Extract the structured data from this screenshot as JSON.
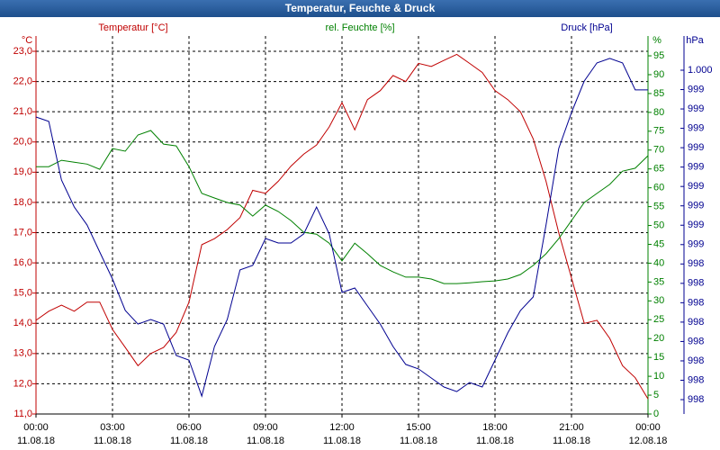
{
  "chart_data": {
    "type": "line",
    "title": "Temperatur, Feuchte & Druck",
    "x": [
      0,
      0.5,
      1,
      1.5,
      2,
      2.5,
      3,
      3.5,
      4,
      4.5,
      5,
      5.5,
      6,
      6.5,
      7,
      7.5,
      8,
      8.5,
      9,
      9.5,
      10,
      10.5,
      11,
      11.5,
      12,
      12.5,
      13,
      13.5,
      14,
      14.5,
      15,
      15.5,
      16,
      16.5,
      17,
      17.5,
      18,
      18.5,
      19,
      19.5,
      20,
      20.5,
      21,
      21.5,
      22,
      22.5,
      23,
      23.5,
      24
    ],
    "xlim": [
      0,
      24
    ],
    "xticks": [
      {
        "value": 0,
        "label": "00:00",
        "sublabel": "11.08.18"
      },
      {
        "value": 3,
        "label": "03:00",
        "sublabel": "11.08.18"
      },
      {
        "value": 6,
        "label": "06:00",
        "sublabel": "11.08.18"
      },
      {
        "value": 9,
        "label": "09:00",
        "sublabel": "11.08.18"
      },
      {
        "value": 12,
        "label": "12:00",
        "sublabel": "11.08.18"
      },
      {
        "value": 15,
        "label": "15:00",
        "sublabel": "11.08.18"
      },
      {
        "value": 18,
        "label": "18:00",
        "sublabel": "11.08.18"
      },
      {
        "value": 21,
        "label": "21:00",
        "sublabel": "11.08.18"
      },
      {
        "value": 24,
        "label": "00:00",
        "sublabel": "12.08.18"
      }
    ],
    "ylabel": "°C",
    "ylim": [
      11,
      23
    ],
    "yticks": [
      {
        "value": 11,
        "label": "11,0"
      },
      {
        "value": 12,
        "label": "12,0"
      },
      {
        "value": 13,
        "label": "13,0"
      },
      {
        "value": 14,
        "label": "14,0"
      },
      {
        "value": 15,
        "label": "15,0"
      },
      {
        "value": 16,
        "label": "16,0"
      },
      {
        "value": 17,
        "label": "17,0"
      },
      {
        "value": 18,
        "label": "18,0"
      },
      {
        "value": 19,
        "label": "19,0"
      },
      {
        "value": 20,
        "label": "20,0"
      },
      {
        "value": 21,
        "label": "21,0"
      },
      {
        "value": 22,
        "label": "22,0"
      },
      {
        "value": 23,
        "label": "23,0"
      }
    ],
    "y2label": "%",
    "y2lim": [
      0,
      96.2
    ],
    "y2ticks": [
      0,
      5,
      10,
      15,
      20,
      25,
      30,
      35,
      40,
      45,
      50,
      55,
      60,
      65,
      70,
      75,
      80,
      85,
      90,
      95
    ],
    "y3label": "hPa",
    "y3lim": [
      997.461,
      999.707
    ],
    "y3ticks": [
      {
        "value": 997.55,
        "label": "998"
      },
      {
        "value": 997.67,
        "label": "998"
      },
      {
        "value": 997.79,
        "label": "998"
      },
      {
        "value": 997.91,
        "label": "998"
      },
      {
        "value": 998.03,
        "label": "998"
      },
      {
        "value": 998.15,
        "label": "998"
      },
      {
        "value": 998.27,
        "label": "998"
      },
      {
        "value": 998.39,
        "label": "998"
      },
      {
        "value": 998.51,
        "label": "999"
      },
      {
        "value": 998.63,
        "label": "999"
      },
      {
        "value": 998.75,
        "label": "999"
      },
      {
        "value": 998.87,
        "label": "999"
      },
      {
        "value": 998.99,
        "label": "999"
      },
      {
        "value": 999.11,
        "label": "999"
      },
      {
        "value": 999.23,
        "label": "999"
      },
      {
        "value": 999.35,
        "label": "999"
      },
      {
        "value": 999.47,
        "label": "999"
      },
      {
        "value": 999.59,
        "label": "1.000"
      }
    ],
    "grid": true,
    "series": [
      {
        "name": "Temperatur [°C]",
        "color": "#c00000",
        "axis": "y",
        "values": [
          14.1,
          14.4,
          14.6,
          14.4,
          14.7,
          14.7,
          13.8,
          13.2,
          12.6,
          13.0,
          13.2,
          13.7,
          14.7,
          16.6,
          16.8,
          17.1,
          17.5,
          18.4,
          18.3,
          18.7,
          19.2,
          19.6,
          19.9,
          20.5,
          21.3,
          20.4,
          21.4,
          21.7,
          22.2,
          22.0,
          22.6,
          22.5,
          22.7,
          22.9,
          22.6,
          22.3,
          21.7,
          21.4,
          21.0,
          20.1,
          18.7,
          17.0,
          15.5,
          14.0,
          14.1,
          13.5,
          12.6,
          12.2,
          11.5
        ]
      },
      {
        "name": "rel. Feuchte [%]",
        "color": "#008000",
        "axis": "y2",
        "values": [
          65.6,
          65.6,
          67.3,
          66.8,
          66.3,
          64.9,
          70.4,
          69.7,
          74.0,
          75.2,
          71.6,
          71.1,
          65.6,
          58.5,
          57.3,
          56.1,
          55.4,
          52.5,
          55.4,
          53.7,
          51.3,
          48.2,
          47.7,
          45.3,
          40.6,
          45.3,
          42.5,
          39.4,
          37.7,
          36.3,
          36.3,
          35.8,
          34.6,
          34.6,
          34.8,
          35.1,
          35.3,
          35.8,
          37.0,
          39.4,
          42.5,
          46.5,
          51.3,
          56.1,
          58.5,
          60.9,
          64.4,
          65.2,
          68.5
        ]
      },
      {
        "name": "Druck [hPa]",
        "color": "#000090",
        "axis": "y3",
        "values": [
          999.3,
          999.273,
          998.91,
          998.743,
          998.632,
          998.464,
          998.297,
          998.102,
          998.018,
          998.046,
          998.018,
          997.823,
          997.795,
          997.572,
          997.879,
          998.046,
          998.353,
          998.381,
          998.548,
          998.52,
          998.52,
          998.576,
          998.743,
          998.576,
          998.214,
          998.241,
          998.13,
          998.018,
          997.879,
          997.768,
          997.74,
          997.684,
          997.628,
          997.6,
          997.656,
          997.628,
          997.795,
          997.963,
          998.102,
          998.186,
          998.632,
          999.105,
          999.328,
          999.523,
          999.635,
          999.663,
          999.635,
          999.468,
          999.468
        ]
      }
    ]
  }
}
